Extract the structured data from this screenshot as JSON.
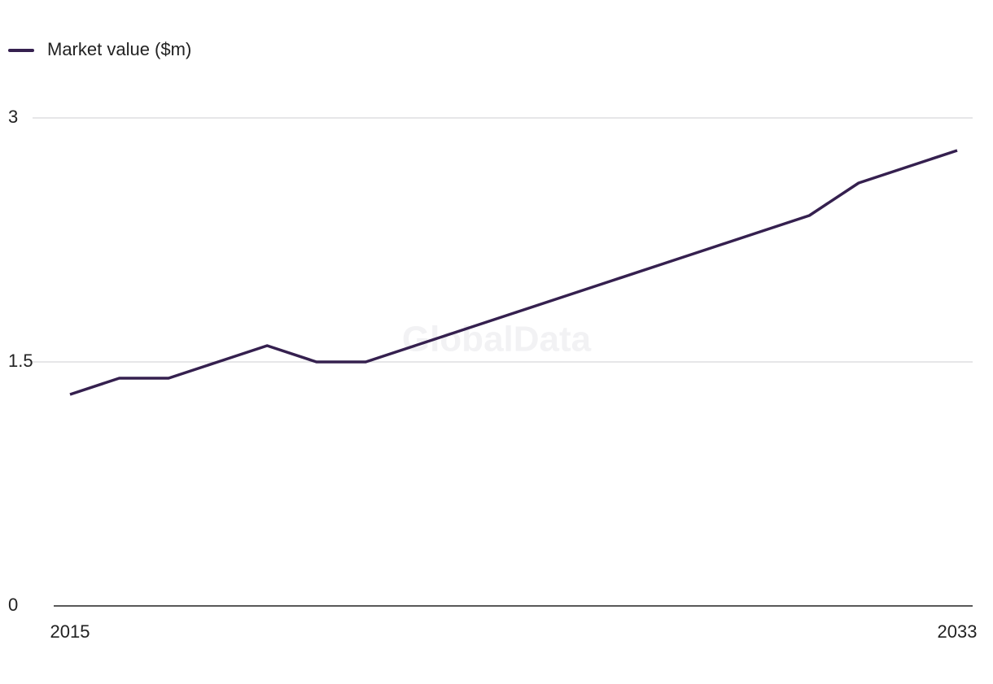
{
  "chart_data": {
    "type": "line",
    "watermark": "GlobalData",
    "x": [
      2015,
      2016,
      2017,
      2018,
      2019,
      2020,
      2021,
      2022,
      2023,
      2024,
      2025,
      2026,
      2027,
      2028,
      2029,
      2030,
      2031,
      2032,
      2033
    ],
    "series": [
      {
        "name": "Market value ($m)",
        "color": "#35204f",
        "values": [
          1.3,
          1.4,
          1.4,
          1.5,
          1.6,
          1.5,
          1.5,
          1.6,
          1.7,
          1.8,
          1.9,
          2.0,
          2.1,
          2.2,
          2.3,
          2.4,
          2.6,
          2.7,
          2.8
        ]
      }
    ],
    "xlim": [
      2015,
      2033
    ],
    "xticks": [
      2015,
      2033
    ],
    "ylim": [
      0,
      3
    ],
    "yticks": [
      0,
      1.5,
      3
    ],
    "grid": true,
    "legend": "top-left"
  }
}
